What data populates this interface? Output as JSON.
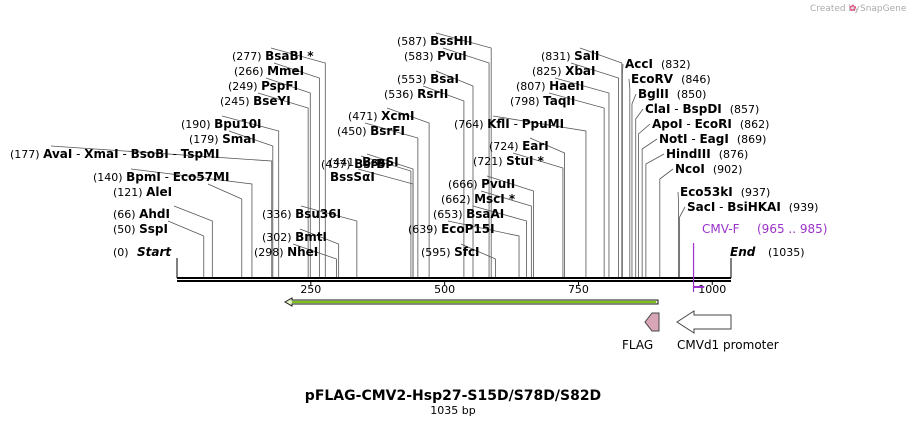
{
  "credit": {
    "prefix": "Created by",
    "brand": "SnapGene"
  },
  "title": "pFLAG-CMV2-Hsp27-S15D/S78D/S82D",
  "length_label": "1035 bp",
  "colors": {
    "primer": "#9a33c9",
    "arrow_fill": "#e8f5c8",
    "arrow_stroke": "#1a1a1a",
    "flag_fill": "#d9a6b8",
    "promoter_fill": "#ffffff"
  },
  "ticks": [
    {
      "bp": 250,
      "label": "250"
    },
    {
      "bp": 500,
      "label": "500"
    },
    {
      "bp": 750,
      "label": "750"
    },
    {
      "bp": 1000,
      "label": "1000"
    }
  ],
  "ends": {
    "start_pos": "(0)",
    "start": "Start",
    "end": "End",
    "end_pos": "(1035)"
  },
  "sites": [
    {
      "id": "s1",
      "pos": "(50)",
      "parts": [
        "SspI"
      ],
      "bp": 50
    },
    {
      "id": "s2",
      "pos": "(66)",
      "parts": [
        "AhdI"
      ],
      "bp": 66
    },
    {
      "id": "s3",
      "pos": "(121)",
      "parts": [
        "AleI"
      ],
      "bp": 121
    },
    {
      "id": "s4",
      "pos": "(140)",
      "parts": [
        "BpmI",
        " - ",
        "Eco57MI"
      ],
      "bp": 140
    },
    {
      "id": "s5",
      "pos": "(177)",
      "parts": [
        "AvaI",
        " - ",
        "XmaI",
        " - ",
        "BsoBI",
        " - ",
        "TspMI"
      ],
      "bp": 177
    },
    {
      "id": "s6",
      "pos": "(179)",
      "parts": [
        "SmaI"
      ],
      "bp": 179
    },
    {
      "id": "s7",
      "pos": "(190)",
      "parts": [
        "Bpu10I"
      ],
      "bp": 190
    },
    {
      "id": "s8",
      "pos": "(245)",
      "parts": [
        "BseYI"
      ],
      "bp": 245
    },
    {
      "id": "s9",
      "pos": "(249)",
      "parts": [
        "PspFI"
      ],
      "bp": 249
    },
    {
      "id": "s10",
      "pos": "(266)",
      "parts": [
        "MmeI"
      ],
      "bp": 266
    },
    {
      "id": "s11",
      "pos": "(277)",
      "parts": [
        "BsaBI",
        " *"
      ],
      "bp": 277
    },
    {
      "id": "s12",
      "pos": "(298)",
      "parts": [
        "NheI"
      ],
      "bp": 298
    },
    {
      "id": "s13",
      "pos": "(302)",
      "parts": [
        "BmtI"
      ],
      "bp": 302
    },
    {
      "id": "s14",
      "pos": "(336)",
      "parts": [
        "Bsu36I"
      ],
      "bp": 336
    },
    {
      "id": "s15",
      "pos": "(437)",
      "parts": [
        "BsrBI"
      ],
      "bp": 437
    },
    {
      "id": "s16",
      "pos": "",
      "parts": [
        "BssSαI"
      ],
      "bp": 441
    },
    {
      "id": "s17",
      "pos": "(441)",
      "parts": [
        "BssSI"
      ],
      "bp": 441
    },
    {
      "id": "s18",
      "pos": "(450)",
      "parts": [
        "BsrFI"
      ],
      "bp": 450
    },
    {
      "id": "s19",
      "pos": "(471)",
      "parts": [
        "XcmI"
      ],
      "bp": 471
    },
    {
      "id": "s20",
      "pos": "(536)",
      "parts": [
        "RsrII"
      ],
      "bp": 536
    },
    {
      "id": "s21",
      "pos": "(553)",
      "parts": [
        "BsaI"
      ],
      "bp": 553
    },
    {
      "id": "s22",
      "pos": "(583)",
      "parts": [
        "PvuI"
      ],
      "bp": 583
    },
    {
      "id": "s23",
      "pos": "(587)",
      "parts": [
        "BssHII"
      ],
      "bp": 587
    },
    {
      "id": "s24",
      "pos": "(595)",
      "parts": [
        "SfcI"
      ],
      "bp": 595
    },
    {
      "id": "s25",
      "pos": "(639)",
      "parts": [
        "EcoP15I"
      ],
      "bp": 639
    },
    {
      "id": "s26",
      "pos": "(653)",
      "parts": [
        "BsaAI"
      ],
      "bp": 653
    },
    {
      "id": "s27",
      "pos": "(662)",
      "parts": [
        "MscI",
        " *"
      ],
      "bp": 662
    },
    {
      "id": "s28",
      "pos": "(666)",
      "parts": [
        "PvuII"
      ],
      "bp": 666
    },
    {
      "id": "s29",
      "pos": "(721)",
      "parts": [
        "StuI",
        " *"
      ],
      "bp": 721
    },
    {
      "id": "s30",
      "pos": "(724)",
      "parts": [
        "EarI"
      ],
      "bp": 724
    },
    {
      "id": "s31",
      "pos": "(764)",
      "parts": [
        "KflI",
        " - ",
        "PpuMI"
      ],
      "bp": 764
    },
    {
      "id": "s32",
      "pos": "(798)",
      "parts": [
        "TaqII"
      ],
      "bp": 798
    },
    {
      "id": "s33",
      "pos": "(807)",
      "parts": [
        "HaeII"
      ],
      "bp": 807
    },
    {
      "id": "s34",
      "pos": "(825)",
      "parts": [
        "XbaI"
      ],
      "bp": 825
    },
    {
      "id": "s35",
      "pos": "(831)",
      "parts": [
        "SalI"
      ],
      "bp": 831
    },
    {
      "id": "s36",
      "pos": "(832)",
      "parts": [
        "AccI"
      ],
      "bp": 832
    },
    {
      "id": "s37",
      "pos": "(846)",
      "parts": [
        "EcoRV"
      ],
      "bp": 846
    },
    {
      "id": "s38",
      "pos": "(850)",
      "parts": [
        "BglII"
      ],
      "bp": 850
    },
    {
      "id": "s39",
      "pos": "(857)",
      "parts": [
        "ClaI",
        " - ",
        "BspDI"
      ],
      "bp": 857
    },
    {
      "id": "s40",
      "pos": "(862)",
      "parts": [
        "ApoI",
        " - ",
        "EcoRI"
      ],
      "bp": 862
    },
    {
      "id": "s41",
      "pos": "(869)",
      "parts": [
        "NotI",
        " - ",
        "EagI"
      ],
      "bp": 869
    },
    {
      "id": "s42",
      "pos": "(876)",
      "parts": [
        "HindIII"
      ],
      "bp": 876
    },
    {
      "id": "s43",
      "pos": "(902)",
      "parts": [
        "NcoI"
      ],
      "bp": 902
    },
    {
      "id": "s44",
      "pos": "(937)",
      "parts": [
        "Eco53kI"
      ],
      "bp": 937
    },
    {
      "id": "s45",
      "pos": "(939)",
      "parts": [
        "SacI",
        " - ",
        "BsiHKAI"
      ],
      "bp": 939
    }
  ],
  "primer": {
    "name": "CMV-F",
    "range": "(965 .. 985)",
    "bp_start": 965,
    "bp_end": 985
  },
  "features": [
    {
      "name": "FLAG",
      "kind": "tag"
    },
    {
      "name": "CMVd1 promoter",
      "kind": "promoter"
    }
  ]
}
